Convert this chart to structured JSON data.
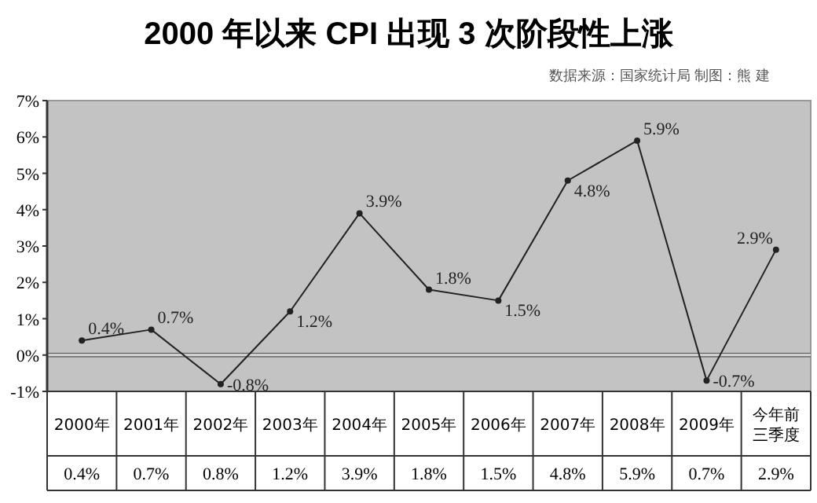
{
  "chart_data": {
    "type": "line",
    "title": "2000 年以来 CPI 出现 3 次阶段性上涨",
    "subtitle": "数据来源：国家统计局  制图：熊  建",
    "categories": [
      "2000年",
      "2001年",
      "2002年",
      "2003年",
      "2004年",
      "2005年",
      "2006年",
      "2007年",
      "2008年",
      "2009年",
      "今年前三季度"
    ],
    "series": [
      {
        "color": "#222222",
        "values": [
          0.4,
          0.7,
          -0.8,
          1.2,
          3.9,
          1.8,
          1.5,
          4.8,
          5.9,
          -0.7,
          2.9
        ],
        "value_labels": [
          "0.4%",
          "0.7%",
          "-0.8%",
          "1.2%",
          "3.9%",
          "1.8%",
          "1.5%",
          "4.8%",
          "5.9%",
          "-0.7%",
          "2.9%"
        ]
      }
    ],
    "ylim": [
      -1,
      7
    ],
    "yticks": [
      {
        "value": -1,
        "label": "-1%"
      },
      {
        "value": 0,
        "label": "0%"
      },
      {
        "value": 1,
        "label": "1%"
      },
      {
        "value": 2,
        "label": "2%"
      },
      {
        "value": 3,
        "label": "3%"
      },
      {
        "value": 4,
        "label": "4%"
      },
      {
        "value": 5,
        "label": "5%"
      },
      {
        "value": 6,
        "label": "6%"
      },
      {
        "value": 7,
        "label": "7%"
      }
    ],
    "ref_lines": [
      {
        "axis": "y",
        "value": 0,
        "color": "#f2f2f2"
      }
    ],
    "annotations": [
      "0.4%",
      "0.7%",
      "0.8%",
      "1.2%",
      "3.9%",
      "1.8%",
      "1.5%",
      "4.8%",
      "5.9%",
      "0.7%",
      "2.9%"
    ],
    "marker": "circle"
  }
}
